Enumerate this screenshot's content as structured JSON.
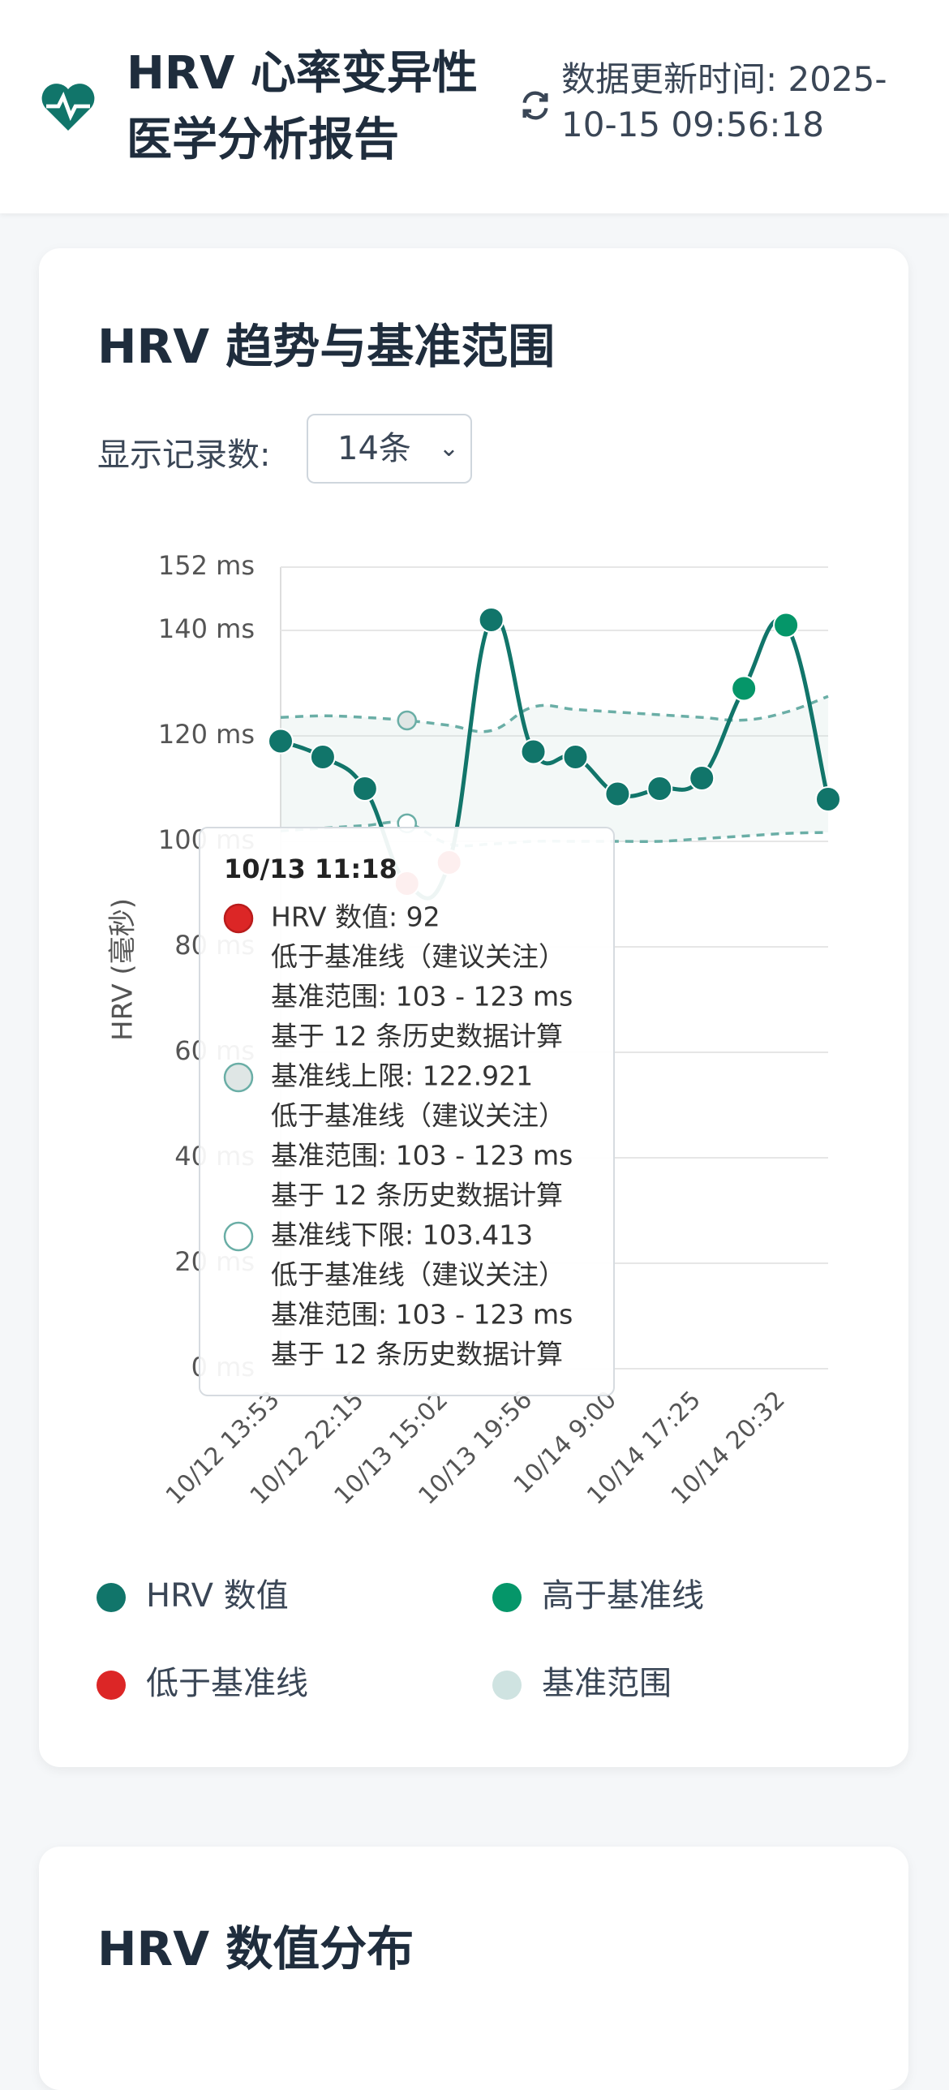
{
  "header": {
    "title": "HRV 心率变异性医学分析报告",
    "update_time": "数据更新时间: 2025-10-15 09:56:18"
  },
  "trend_card": {
    "title": "HRV 趋势与基准范围",
    "record_label": "显示记录数:",
    "record_select": "14条"
  },
  "distribution_card": {
    "title": "HRV 数值分布"
  },
  "chart_data": {
    "type": "line",
    "y_label": "HRV (毫秒)",
    "categories": [
      "10/12 13:53",
      null,
      "10/12 22:15",
      null,
      "10/13 15:02",
      null,
      "10/13 19:56",
      null,
      "10/14 9:00",
      null,
      "10/14 17:25",
      null,
      "10/14 20:32",
      null
    ],
    "series": [
      {
        "name": "HRV 数值",
        "color": "#11756a",
        "values": [
          119,
          116,
          110,
          92,
          96,
          142,
          117,
          116,
          109,
          110,
          112,
          129,
          141,
          108
        ],
        "point_colors": [
          "#11756a",
          "#11756a",
          "#11756a",
          "#dc2626",
          "#dc2626",
          "#11756a",
          "#11756a",
          "#11756a",
          "#11756a",
          "#11756a",
          "#11756a",
          "#059669",
          "#059669",
          "#11756a"
        ]
      },
      {
        "name": "基准线上限",
        "color": "#6aaea6",
        "values": [
          123.5,
          123.8,
          123.5,
          122.921,
          122,
          121,
          125.5,
          125,
          124.5,
          124,
          123.5,
          123,
          124.5,
          127.5
        ]
      },
      {
        "name": "基准线下限",
        "color": "#6aaea6",
        "values": [
          102,
          102.5,
          103,
          103.413,
          99.5,
          99.5,
          100,
          100,
          100,
          100,
          100.5,
          101,
          101.5,
          101.7
        ]
      }
    ],
    "legend": [
      {
        "name": "HRV 数值",
        "color": "#11756a"
      },
      {
        "name": "高于基准线",
        "color": "#059669"
      },
      {
        "name": "低于基准线",
        "color": "#dc2626"
      },
      {
        "name": "基准范围",
        "color": "#cfe3e1"
      }
    ],
    "ylim": [
      0,
      152
    ],
    "yticks": [
      {
        "value": 0,
        "label": "0 ms"
      },
      {
        "value": 20,
        "label": "20 ms"
      },
      {
        "value": 40,
        "label": "40 ms"
      },
      {
        "value": 60,
        "label": "60 ms"
      },
      {
        "value": 80,
        "label": "80 ms"
      },
      {
        "value": 100,
        "label": "100 ms"
      },
      {
        "value": 120,
        "label": "120 ms"
      },
      {
        "value": 140,
        "label": "140 ms"
      },
      {
        "value": 152,
        "label": "152 ms"
      }
    ],
    "grid": true,
    "tooltip": {
      "title": "10/13 11:18",
      "items": [
        {
          "label": "HRV 数值: 92",
          "lines": [
            "低于基准线（建议关注）",
            "基准范围: 103 - 123 ms",
            "基于 12 条历史数据计算"
          ]
        },
        {
          "label": "基准线上限: 122.921",
          "lines": [
            "低于基准线（建议关注）",
            "基准范围: 103 - 123 ms",
            "基于 12 条历史数据计算"
          ]
        },
        {
          "label": "基准线下限: 103.413",
          "lines": [
            "低于基准线（建议关注）",
            "基准范围: 103 - 123 ms",
            "基于 12 条历史数据计算"
          ]
        }
      ]
    }
  }
}
